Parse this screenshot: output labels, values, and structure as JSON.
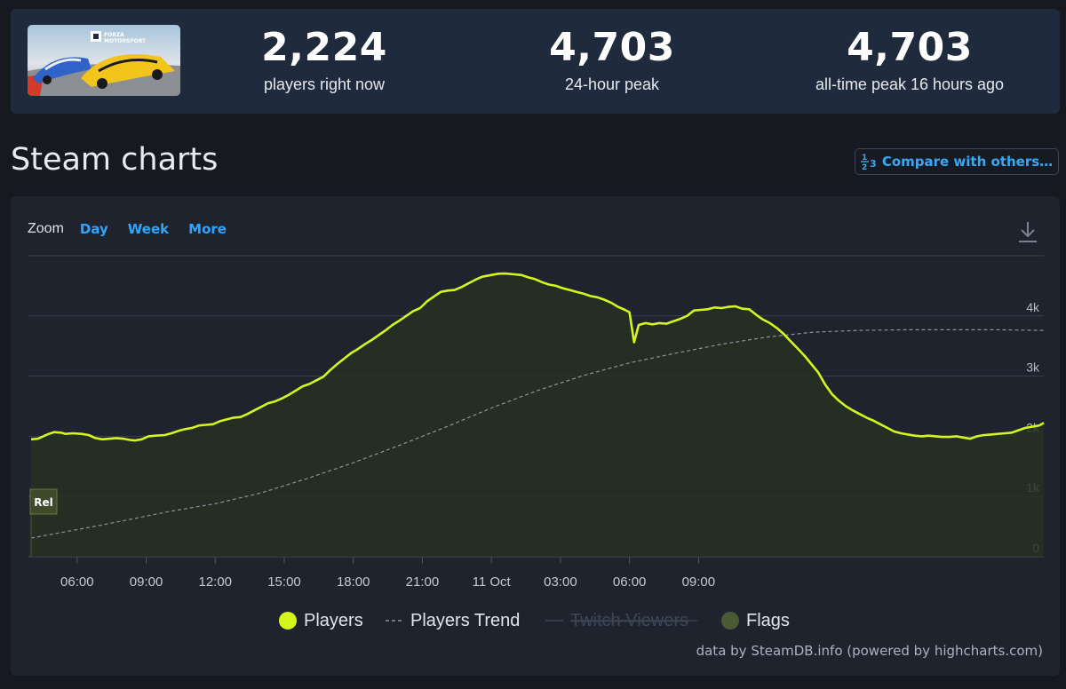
{
  "stats": [
    {
      "value": "2,224",
      "label": "players right now"
    },
    {
      "value": "4,703",
      "label": "24-hour peak"
    },
    {
      "value": "4,703",
      "label": "all-time peak 16 hours ago"
    }
  ],
  "logo_text": {
    "brand": "FORZA",
    "product": "MOTORSPORT"
  },
  "page": {
    "title": "Steam charts",
    "compare_label": "Compare with others…",
    "compare_icon": "fraction-icon"
  },
  "zoom": {
    "label": "Zoom",
    "options": [
      "Day",
      "Week",
      "More"
    ]
  },
  "credit": "data by SteamDB.info (powered by highcharts.com)",
  "colors": {
    "players": "#d4f61d",
    "trend": "#8c939c",
    "flag": "#3e4a2a",
    "accent": "#2ea6ff"
  },
  "chart_data": {
    "type": "line",
    "x_unit": "hours since 04:00 on 10 Oct",
    "x_tick_labels": [
      "06:00",
      "09:00",
      "12:00",
      "15:00",
      "18:00",
      "21:00",
      "11 Oct",
      "03:00",
      "06:00",
      "09:00"
    ],
    "y_tick_labels": [
      "0",
      "1k",
      "2k",
      "3k",
      "4k"
    ],
    "ylim": [
      0,
      5000
    ],
    "grid": true,
    "legend": {
      "placement": "bottom-center",
      "items": [
        {
          "name": "Players",
          "symbol": "dot",
          "hidden": false
        },
        {
          "name": "Players Trend",
          "symbol": "dash",
          "hidden": false
        },
        {
          "name": "Twitch Viewers",
          "symbol": "line",
          "hidden": true
        },
        {
          "name": "Flags",
          "symbol": "dot",
          "hidden": false
        }
      ]
    },
    "series": [
      {
        "name": "Players",
        "points": [
          [
            0.0,
            1950
          ],
          [
            0.3,
            1960
          ],
          [
            0.7,
            2030
          ],
          [
            1.0,
            2070
          ],
          [
            1.3,
            2060
          ],
          [
            1.5,
            2040
          ],
          [
            1.8,
            2050
          ],
          [
            2.2,
            2040
          ],
          [
            2.5,
            2020
          ],
          [
            2.8,
            1970
          ],
          [
            3.1,
            1950
          ],
          [
            3.4,
            1960
          ],
          [
            3.7,
            1970
          ],
          [
            4.0,
            1960
          ],
          [
            4.3,
            1940
          ],
          [
            4.5,
            1930
          ],
          [
            4.8,
            1950
          ],
          [
            5.1,
            2000
          ],
          [
            5.4,
            2010
          ],
          [
            5.8,
            2020
          ],
          [
            6.1,
            2050
          ],
          [
            6.4,
            2090
          ],
          [
            6.7,
            2120
          ],
          [
            7.0,
            2140
          ],
          [
            7.3,
            2180
          ],
          [
            7.6,
            2190
          ],
          [
            7.9,
            2200
          ],
          [
            8.2,
            2250
          ],
          [
            8.5,
            2280
          ],
          [
            8.8,
            2310
          ],
          [
            9.1,
            2320
          ],
          [
            9.4,
            2370
          ],
          [
            9.7,
            2430
          ],
          [
            10.0,
            2490
          ],
          [
            10.3,
            2550
          ],
          [
            10.6,
            2580
          ],
          [
            10.9,
            2630
          ],
          [
            11.2,
            2690
          ],
          [
            11.5,
            2760
          ],
          [
            11.8,
            2830
          ],
          [
            12.1,
            2870
          ],
          [
            12.4,
            2930
          ],
          [
            12.7,
            2990
          ],
          [
            13.0,
            3100
          ],
          [
            13.3,
            3200
          ],
          [
            13.6,
            3290
          ],
          [
            13.9,
            3380
          ],
          [
            14.2,
            3450
          ],
          [
            14.5,
            3530
          ],
          [
            14.8,
            3600
          ],
          [
            15.1,
            3680
          ],
          [
            15.4,
            3760
          ],
          [
            15.7,
            3850
          ],
          [
            16.0,
            3920
          ],
          [
            16.3,
            4000
          ],
          [
            16.6,
            4080
          ],
          [
            16.9,
            4130
          ],
          [
            17.2,
            4240
          ],
          [
            17.5,
            4320
          ],
          [
            17.8,
            4400
          ],
          [
            18.1,
            4420
          ],
          [
            18.4,
            4430
          ],
          [
            18.7,
            4480
          ],
          [
            19.0,
            4540
          ],
          [
            19.3,
            4600
          ],
          [
            19.6,
            4650
          ],
          [
            20.0,
            4680
          ],
          [
            20.3,
            4700
          ],
          [
            20.6,
            4703
          ],
          [
            21.0,
            4690
          ],
          [
            21.3,
            4680
          ],
          [
            21.6,
            4640
          ],
          [
            21.9,
            4610
          ],
          [
            22.2,
            4560
          ],
          [
            22.5,
            4520
          ],
          [
            22.8,
            4500
          ],
          [
            23.1,
            4460
          ],
          [
            23.4,
            4430
          ],
          [
            23.7,
            4400
          ],
          [
            24.0,
            4370
          ],
          [
            24.3,
            4330
          ],
          [
            24.6,
            4310
          ],
          [
            24.9,
            4270
          ],
          [
            25.2,
            4220
          ],
          [
            25.5,
            4150
          ],
          [
            25.8,
            4100
          ],
          [
            26.0,
            4060
          ],
          [
            26.2,
            3560
          ],
          [
            26.4,
            3850
          ],
          [
            26.7,
            3880
          ],
          [
            27.0,
            3860
          ],
          [
            27.3,
            3880
          ],
          [
            27.6,
            3870
          ],
          [
            27.9,
            3910
          ],
          [
            28.2,
            3950
          ],
          [
            28.5,
            4000
          ],
          [
            28.8,
            4090
          ],
          [
            29.1,
            4100
          ],
          [
            29.4,
            4110
          ],
          [
            29.7,
            4140
          ],
          [
            30.0,
            4130
          ],
          [
            30.3,
            4150
          ],
          [
            30.6,
            4160
          ],
          [
            30.9,
            4120
          ],
          [
            31.2,
            4110
          ],
          [
            31.5,
            4020
          ],
          [
            31.8,
            3940
          ],
          [
            32.1,
            3880
          ],
          [
            32.4,
            3800
          ],
          [
            32.7,
            3700
          ],
          [
            33.0,
            3580
          ],
          [
            33.3,
            3460
          ],
          [
            33.6,
            3340
          ],
          [
            33.9,
            3200
          ],
          [
            34.2,
            3060
          ],
          [
            34.5,
            2860
          ],
          [
            34.8,
            2700
          ],
          [
            35.1,
            2590
          ],
          [
            35.4,
            2500
          ],
          [
            35.7,
            2430
          ],
          [
            36.0,
            2370
          ],
          [
            36.3,
            2310
          ],
          [
            36.6,
            2260
          ],
          [
            36.9,
            2200
          ],
          [
            37.2,
            2140
          ],
          [
            37.5,
            2080
          ],
          [
            37.8,
            2050
          ],
          [
            38.1,
            2030
          ],
          [
            38.4,
            2010
          ],
          [
            38.7,
            2000
          ],
          [
            39.0,
            2010
          ],
          [
            39.3,
            2000
          ],
          [
            39.6,
            1990
          ],
          [
            39.9,
            1990
          ],
          [
            40.2,
            2000
          ],
          [
            40.5,
            1980
          ],
          [
            40.8,
            1960
          ],
          [
            41.1,
            2000
          ],
          [
            41.4,
            2020
          ],
          [
            41.7,
            2030
          ],
          [
            42.0,
            2040
          ],
          [
            42.3,
            2050
          ],
          [
            42.6,
            2060
          ],
          [
            42.9,
            2100
          ],
          [
            43.2,
            2140
          ],
          [
            43.5,
            2160
          ],
          [
            43.8,
            2180
          ],
          [
            44.0,
            2224
          ]
        ]
      },
      {
        "name": "Players Trend",
        "points": [
          [
            0.0,
            310
          ],
          [
            3.0,
            520
          ],
          [
            6.0,
            750
          ],
          [
            8.0,
            880
          ],
          [
            10.0,
            1060
          ],
          [
            12.0,
            1300
          ],
          [
            14.0,
            1560
          ],
          [
            16.0,
            1850
          ],
          [
            18.0,
            2150
          ],
          [
            20.0,
            2470
          ],
          [
            22.0,
            2760
          ],
          [
            24.0,
            3010
          ],
          [
            26.0,
            3220
          ],
          [
            28.0,
            3380
          ],
          [
            30.0,
            3530
          ],
          [
            32.0,
            3650
          ],
          [
            34.0,
            3730
          ],
          [
            36.0,
            3760
          ],
          [
            38.0,
            3770
          ],
          [
            40.0,
            3770
          ],
          [
            42.0,
            3770
          ],
          [
            44.0,
            3760
          ]
        ]
      }
    ],
    "flags": [
      {
        "x": 0.0,
        "label": "Rel"
      }
    ]
  }
}
